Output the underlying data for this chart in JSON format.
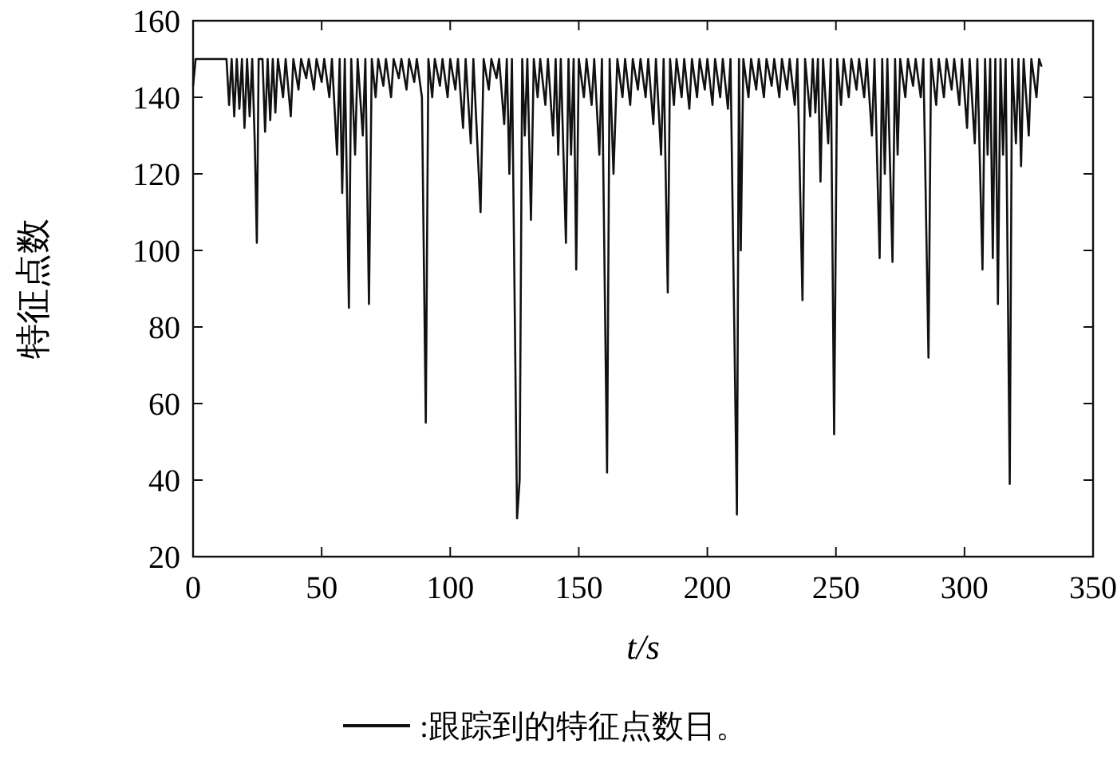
{
  "chart_data": {
    "type": "line",
    "xlabel": "t/s",
    "ylabel": "特征点数",
    "xlim": [
      0,
      350
    ],
    "xticks": [
      0,
      50,
      100,
      150,
      200,
      250,
      300,
      350
    ],
    "ylim": [
      20,
      160
    ],
    "yticks": [
      20,
      40,
      60,
      80,
      100,
      120,
      140,
      160
    ],
    "grid": false,
    "legend": "bottom",
    "marker": "none",
    "line_style": "solid",
    "series": [
      {
        "name": ":跟踪到的特征点数日。",
        "color": "#111111",
        "x": [
          0,
          1,
          13,
          14,
          15,
          16,
          17,
          18,
          19,
          20,
          21,
          22,
          23,
          24,
          24.8,
          25.5,
          27,
          28,
          29,
          30,
          31,
          32,
          33,
          35,
          36,
          38,
          39,
          41,
          42,
          44,
          45,
          47,
          48,
          50,
          51,
          53,
          54,
          56,
          57,
          58,
          59,
          60.6,
          61.5,
          63,
          64,
          66,
          67,
          68.4,
          69.5,
          71,
          72,
          74,
          75,
          77,
          78,
          80,
          81,
          83,
          84,
          86,
          87,
          89,
          90.5,
          91.5,
          93,
          94,
          96,
          97,
          99,
          100,
          102,
          103,
          105,
          106,
          108,
          109,
          111.8,
          113,
          115,
          116,
          118,
          119,
          121,
          122,
          123,
          124,
          126,
          127,
          128,
          129,
          130,
          131.4,
          132.5,
          134,
          135,
          137,
          138,
          140,
          141,
          142,
          143,
          145,
          146,
          147,
          148,
          149,
          150,
          152,
          153,
          155,
          156,
          158,
          159,
          161,
          162,
          163.5,
          165,
          167,
          168,
          170,
          171,
          173,
          174,
          176,
          177,
          179,
          180,
          182,
          183,
          184.6,
          185.5,
          187,
          188,
          190,
          191,
          193,
          194,
          196,
          197,
          199,
          200,
          202,
          203,
          205,
          206,
          208,
          209,
          211.5,
          212.3,
          213,
          214,
          216,
          217,
          219,
          220,
          222,
          223,
          225,
          226,
          228,
          229,
          231,
          232,
          234,
          235,
          237,
          238,
          240,
          241,
          242,
          243,
          244,
          245,
          247,
          248,
          249.3,
          250.5,
          252,
          253,
          255,
          256,
          258,
          259,
          261,
          262,
          264,
          265,
          267,
          268,
          269,
          270,
          272,
          273,
          274,
          275,
          277,
          278,
          280,
          281,
          283,
          284,
          286,
          287,
          289,
          290,
          292,
          293,
          295,
          296,
          298,
          299,
          301,
          302,
          304,
          305,
          307,
          308,
          309,
          310,
          311,
          312,
          313,
          314,
          315,
          316,
          317.6,
          318.5,
          320,
          321,
          322,
          323,
          325,
          326,
          328,
          329,
          330
        ],
        "values": [
          143,
          150,
          150,
          138,
          150,
          135,
          150,
          137,
          150,
          132,
          150,
          135,
          150,
          128,
          102,
          150,
          150,
          131,
          150,
          134,
          150,
          136,
          150,
          140,
          150,
          135,
          150,
          142,
          150,
          145,
          150,
          142,
          150,
          144,
          150,
          140,
          150,
          125,
          150,
          115,
          150,
          85,
          150,
          125,
          150,
          130,
          150,
          86,
          150,
          140,
          150,
          143,
          150,
          140,
          150,
          145,
          150,
          142,
          150,
          144,
          150,
          140,
          55,
          150,
          140,
          150,
          143,
          150,
          140,
          150,
          142,
          150,
          132,
          150,
          128,
          150,
          110,
          150,
          142,
          150,
          145,
          150,
          133,
          150,
          120,
          150,
          30,
          40,
          150,
          130,
          150,
          108,
          150,
          140,
          150,
          138,
          150,
          130,
          150,
          125,
          150,
          102,
          150,
          125,
          150,
          95,
          150,
          140,
          150,
          138,
          150,
          125,
          150,
          42,
          150,
          120,
          150,
          140,
          150,
          138,
          150,
          142,
          150,
          140,
          150,
          133,
          150,
          125,
          150,
          89,
          150,
          138,
          150,
          140,
          150,
          137,
          150,
          140,
          150,
          142,
          150,
          138,
          150,
          140,
          150,
          137,
          150,
          31,
          150,
          100,
          150,
          140,
          150,
          142,
          150,
          140,
          150,
          143,
          150,
          140,
          150,
          142,
          150,
          138,
          150,
          87,
          150,
          135,
          150,
          136,
          150,
          118,
          150,
          128,
          150,
          52,
          150,
          138,
          150,
          140,
          150,
          142,
          150,
          140,
          150,
          130,
          150,
          98,
          150,
          120,
          150,
          97,
          150,
          125,
          150,
          140,
          150,
          143,
          150,
          140,
          150,
          72,
          150,
          138,
          150,
          140,
          150,
          142,
          150,
          138,
          150,
          132,
          150,
          128,
          150,
          95,
          150,
          125,
          150,
          98,
          150,
          86,
          150,
          125,
          150,
          39,
          150,
          128,
          150,
          122,
          150,
          130,
          150,
          140,
          150,
          148
        ]
      }
    ]
  }
}
